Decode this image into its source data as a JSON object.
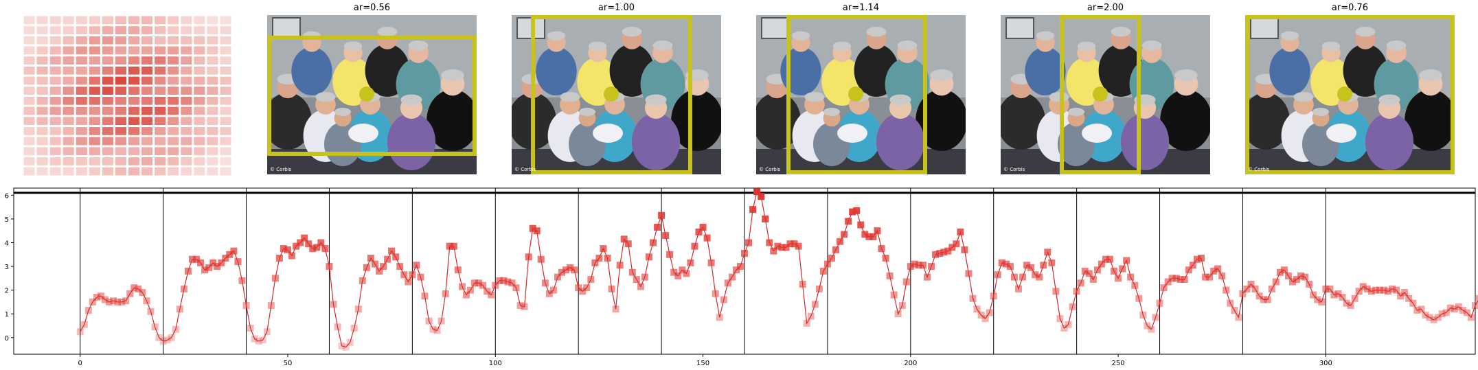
{
  "panels": [
    {
      "title": "ar=0.56",
      "box_color": "#c8c21c"
    },
    {
      "title": "ar=1.00",
      "box_color": "#c8c21c"
    },
    {
      "title": "ar=1.14",
      "box_color": "#c8c21c"
    },
    {
      "title": "ar=2.00",
      "box_color": "#c8c21c"
    },
    {
      "title": "ar=0.76",
      "box_color": "#c8c21c"
    }
  ],
  "photo_watermark": "© Corbis",
  "heatmap": {
    "rows": 16,
    "cols": 16,
    "color": "#d6392e"
  },
  "chart_data": {
    "type": "line",
    "xlim": [
      -16,
      336
    ],
    "ylim": [
      -0.7,
      6.3
    ],
    "xticks": [
      0,
      50,
      100,
      150,
      200,
      250,
      300
    ],
    "yticks": [
      0,
      1,
      2,
      3,
      4,
      5,
      6
    ],
    "vlines": [
      0,
      20,
      40,
      60,
      80,
      100,
      120,
      140,
      160,
      180,
      200,
      220,
      240,
      260,
      280,
      300
    ],
    "hline": 6.1,
    "line_color": "#cc2a2a",
    "marker_color": "#e0352f",
    "y": [
      0.25,
      0.55,
      1.15,
      1.5,
      1.7,
      1.75,
      1.6,
      1.5,
      1.55,
      1.5,
      1.5,
      1.55,
      1.85,
      2.1,
      2.05,
      1.9,
      1.55,
      1.1,
      0.45,
      0.0,
      -0.15,
      -0.1,
      0.0,
      0.35,
      1.2,
      2.05,
      2.8,
      3.3,
      3.3,
      3.15,
      2.85,
      2.95,
      3.15,
      3.0,
      3.15,
      3.35,
      3.5,
      3.65,
      3.2,
      2.4,
      1.35,
      0.4,
      -0.05,
      -0.15,
      -0.1,
      0.25,
      1.35,
      2.5,
      3.35,
      3.75,
      3.7,
      3.45,
      3.85,
      4.0,
      4.2,
      3.95,
      3.75,
      3.8,
      4.0,
      3.75,
      3.0,
      1.4,
      0.45,
      -0.35,
      -0.4,
      -0.2,
      0.4,
      1.2,
      2.4,
      2.95,
      3.35,
      3.1,
      2.8,
      3.0,
      3.3,
      3.65,
      3.4,
      3.0,
      2.65,
      2.35,
      2.65,
      3.05,
      2.55,
      1.75,
      0.7,
      0.35,
      0.3,
      0.7,
      1.85,
      3.85,
      3.85,
      2.85,
      2.15,
      1.8,
      2.0,
      2.3,
      2.3,
      2.2,
      1.95,
      1.8,
      2.2,
      2.4,
      2.4,
      2.35,
      2.3,
      2.1,
      1.35,
      1.3,
      3.4,
      4.6,
      4.5,
      3.3,
      2.3,
      1.85,
      2.0,
      2.55,
      2.75,
      2.85,
      2.95,
      2.85,
      2.1,
      1.95,
      2.1,
      2.45,
      3.15,
      3.35,
      3.75,
      3.35,
      2.05,
      1.2,
      3.05,
      4.15,
      3.95,
      2.75,
      2.45,
      2.15,
      2.55,
      3.4,
      4.0,
      4.65,
      5.15,
      4.3,
      3.5,
      2.75,
      2.6,
      2.85,
      2.7,
      3.15,
      3.85,
      4.45,
      4.65,
      4.2,
      3.15,
      1.85,
      0.85,
      1.6,
      2.3,
      2.55,
      2.85,
      3.0,
      3.55,
      4.0,
      5.4,
      6.15,
      5.95,
      5.0,
      4.0,
      3.65,
      3.85,
      3.8,
      3.8,
      3.95,
      3.95,
      3.85,
      2.25,
      0.6,
      0.9,
      1.4,
      2.05,
      2.8,
      3.1,
      3.35,
      3.7,
      4.05,
      4.35,
      4.9,
      5.3,
      5.35,
      4.75,
      4.35,
      4.25,
      4.25,
      4.5,
      3.75,
      3.35,
      2.6,
      1.8,
      1.0,
      1.35,
      2.35,
      3.0,
      3.1,
      3.05,
      3.05,
      2.55,
      3.0,
      3.5,
      3.55,
      3.6,
      3.65,
      3.8,
      3.95,
      4.45,
      3.7,
      2.7,
      1.65,
      1.2,
      0.95,
      0.8,
      1.05,
      1.75,
      2.65,
      3.15,
      3.1,
      3.0,
      2.55,
      2.05,
      2.55,
      3.05,
      2.95,
      2.65,
      2.55,
      3.05,
      3.6,
      3.15,
      1.95,
      0.8,
      0.4,
      0.55,
      1.3,
      1.95,
      2.3,
      2.8,
      2.7,
      2.45,
      2.85,
      3.1,
      3.3,
      3.3,
      2.8,
      2.5,
      2.9,
      3.25,
      2.55,
      2.2,
      1.65,
      0.95,
      0.5,
      0.35,
      0.85,
      1.45,
      2.1,
      2.35,
      2.5,
      2.5,
      2.45,
      2.45,
      2.85,
      3.05,
      3.3,
      3.35,
      2.55,
      2.55,
      2.8,
      2.9,
      2.6,
      2.0,
      1.45,
      1.15,
      0.85,
      1.85,
      2.05,
      2.25,
      2.05,
      1.75,
      1.6,
      1.6,
      2.05,
      2.35,
      2.75,
      2.85,
      2.6,
      2.35,
      2.45,
      2.6,
      2.55,
      2.25,
      1.8,
      1.6,
      1.5,
      2.05,
      2.05,
      1.8,
      1.85,
      1.7,
      1.45,
      1.35,
      1.65,
      1.95,
      2.15,
      2.05,
      1.95,
      2.0,
      2.0,
      2.0,
      1.95,
      2.05,
      2.0,
      1.75,
      1.9,
      1.65,
      1.45,
      1.15,
      1.2,
      0.95,
      0.85,
      0.75,
      0.85,
      1.0,
      1.05,
      1.25,
      1.2,
      1.3,
      1.15,
      1.05,
      0.85,
      1.35,
      1.65,
      1.5
    ]
  }
}
